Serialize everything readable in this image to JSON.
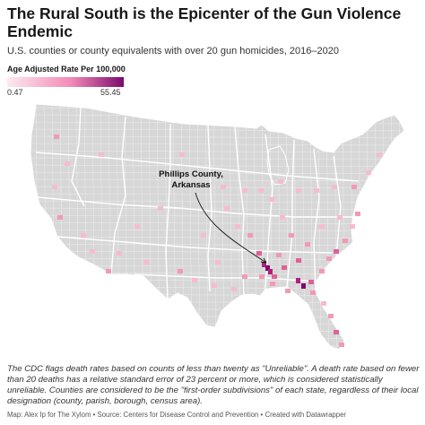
{
  "title": "The Rural South is the Epicenter of the Gun Violence Endemic",
  "subtitle": "U.S. counties or county equivalents with over 20 gun homicides, 2016–2020",
  "legend": {
    "title": "Age Adjusted Rate Per 100,000",
    "min": "0.47",
    "max": "55.45",
    "color_low": "#fde9ee",
    "color_mid": "#f18ab8",
    "color_high": "#7d0a6e"
  },
  "colors": {
    "land": "#d7d7d7",
    "county_border": "#ffffff",
    "state_border": "#ffffff"
  },
  "annotation": {
    "label_line1": "Phillips County,",
    "label_line2": "Arkansas"
  },
  "note": "The CDC flags death rates based on counts of less than twenty as \"Unreliable\". A death rate based on fewer than 20 deaths has a relative standard error of 23 percent or more, which is considered statistically unreliable. Counties are considered to be the \"first-order subdivisions\" of each state, regardless of their local designation (county, parish, borough, census area).",
  "footer": "Map: Alex Ip for The Xylom • Source: Centers for Disease Control and Prevention • Created with Datawrapper"
}
